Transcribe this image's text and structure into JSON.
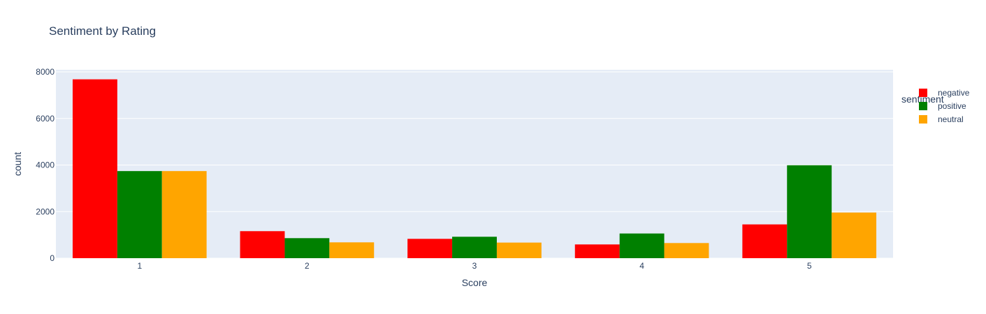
{
  "chart_data": {
    "type": "bar",
    "title": "Sentiment by Rating",
    "xlabel": "Score",
    "ylabel": "count",
    "categories": [
      "1",
      "2",
      "3",
      "4",
      "5"
    ],
    "ylim": [
      0,
      8000
    ],
    "yticks": [
      0,
      2000,
      4000,
      6000,
      8000
    ],
    "grid": true,
    "legend_title": "sentiment",
    "legend_position": "top-right",
    "series": [
      {
        "name": "negative",
        "color": "#ff0000",
        "values": [
          7680,
          1160,
          830,
          590,
          1450
        ]
      },
      {
        "name": "positive",
        "color": "#008000",
        "values": [
          3740,
          860,
          920,
          1060,
          3990
        ]
      },
      {
        "name": "neutral",
        "color": "#ffa500",
        "values": [
          3740,
          680,
          670,
          650,
          1960
        ]
      }
    ]
  }
}
